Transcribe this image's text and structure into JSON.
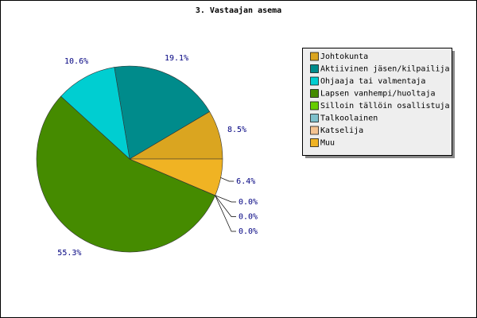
{
  "chart_data": {
    "type": "pie",
    "title": "3. Vastaajan asema",
    "categories": [
      "Johtokunta",
      "Aktiivinen jäsen/kilpailija",
      "Ohjaaja tai valmentaja",
      "Lapsen vanhempi/huoltaja",
      "Silloin tällöin osallistuja",
      "Talkoolainen",
      "Katselija",
      "Muu"
    ],
    "values": [
      8.5,
      19.1,
      10.6,
      55.3,
      0.0,
      0.0,
      0.0,
      6.4
    ],
    "value_labels": [
      "8.5%",
      "19.1%",
      "10.6%",
      "55.3%",
      "0.0%",
      "0.0%",
      "0.0%",
      "6.4%"
    ],
    "colors": [
      "#daa520",
      "#008b8b",
      "#00ced1",
      "#458b00",
      "#66cd00",
      "#7ec0cc",
      "#f4c391",
      "#f0b323"
    ],
    "legend": "right"
  }
}
